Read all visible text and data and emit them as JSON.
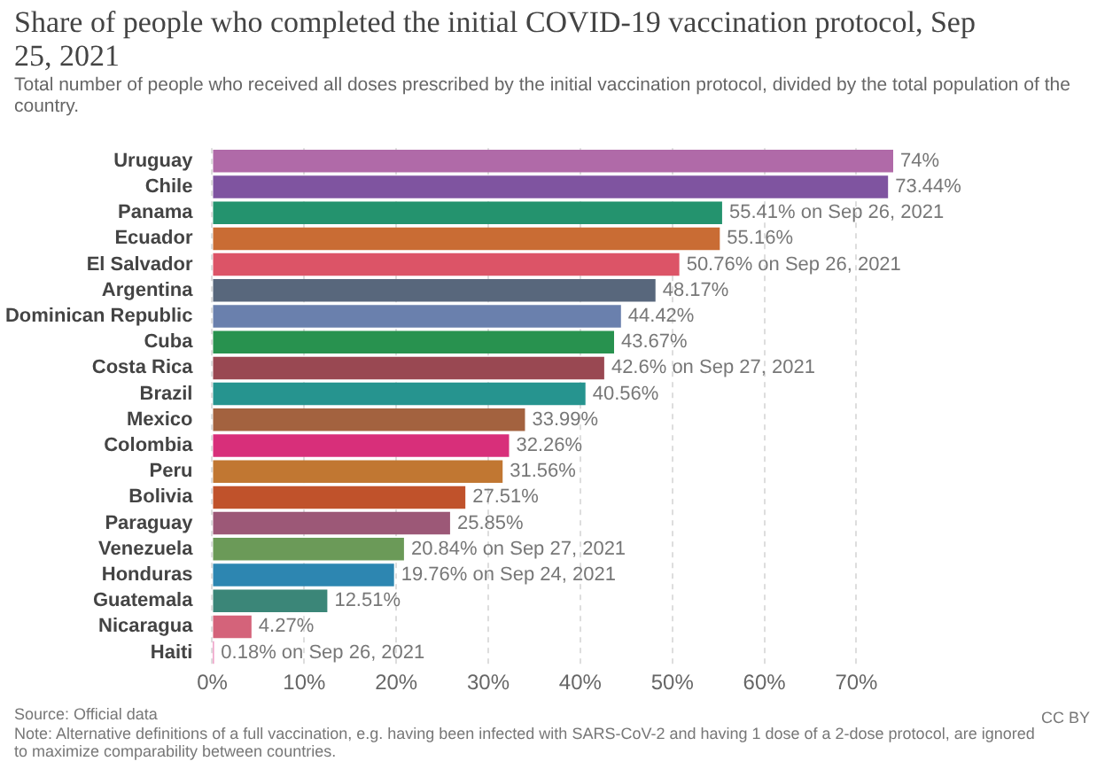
{
  "chart_data": {
    "type": "bar",
    "orientation": "horizontal",
    "title": "Share of people who completed the initial COVID-19 vaccination protocol, Sep 25, 2021",
    "subtitle": "Total number of people who received all doses prescribed by the initial vaccination protocol, divided by the total population of the country.",
    "categories": [
      "Uruguay",
      "Chile",
      "Panama",
      "Ecuador",
      "El Salvador",
      "Argentina",
      "Dominican Republic",
      "Cuba",
      "Costa Rica",
      "Brazil",
      "Mexico",
      "Colombia",
      "Peru",
      "Bolivia",
      "Paraguay",
      "Venezuela",
      "Honduras",
      "Guatemala",
      "Nicaragua",
      "Haiti"
    ],
    "values": [
      74,
      73.44,
      55.41,
      55.16,
      50.76,
      48.17,
      44.42,
      43.67,
      42.6,
      40.56,
      33.99,
      32.26,
      31.56,
      27.51,
      25.85,
      20.84,
      19.76,
      12.51,
      4.27,
      0.18
    ],
    "colors": [
      "#b06aa8",
      "#7f54a0",
      "#24936e",
      "#c96c34",
      "#dc5467",
      "#58677c",
      "#6a80ad",
      "#28924f",
      "#994852",
      "#26948f",
      "#a3623f",
      "#d82f7a",
      "#c17732",
      "#c0522b",
      "#9c5877",
      "#6b9a58",
      "#2d86b1",
      "#3b8678",
      "#d4637a",
      "#e0579b"
    ],
    "value_labels": [
      "74%",
      "73.44%",
      "55.41% on Sep 26, 2021",
      "55.16%",
      "50.76% on Sep 26, 2021",
      "48.17%",
      "44.42%",
      "43.67%",
      "42.6% on Sep 27, 2021",
      "40.56%",
      "33.99%",
      "32.26%",
      "31.56%",
      "27.51%",
      "25.85%",
      "20.84% on Sep 27, 2021",
      "19.76% on Sep 24, 2021",
      "12.51%",
      "4.27%",
      "0.18% on Sep 26, 2021"
    ],
    "xlim": [
      0,
      74
    ],
    "xticks": [
      {
        "value": 0,
        "label": "0%"
      },
      {
        "value": 10,
        "label": "10%"
      },
      {
        "value": 20,
        "label": "20%"
      },
      {
        "value": 30,
        "label": "30%"
      },
      {
        "value": 40,
        "label": "40%"
      },
      {
        "value": 50,
        "label": "50%"
      },
      {
        "value": 60,
        "label": "60%"
      },
      {
        "value": 70,
        "label": "70%"
      }
    ],
    "grid": "x",
    "annotations": [
      "Source: Official data",
      "Note: Alternative definitions of a full vaccination, e.g. having been infected with SARS-CoV-2 and having 1 dose of a 2-dose protocol, are ignored to maximize comparability between countries.",
      "CC BY"
    ]
  }
}
